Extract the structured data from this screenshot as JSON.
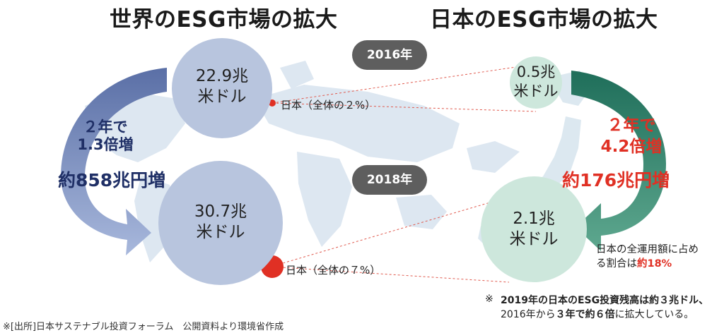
{
  "world": {
    "title": "世界のESG市場の拡大",
    "value_2016_num": "22.9兆",
    "value_2016_unit": "米ドル",
    "value_2018_num": "30.7兆",
    "value_2018_unit": "米ドル",
    "growth_line1": "２年で",
    "growth_line2": "1.3倍増",
    "growth_line3": "約858兆円増",
    "japan_share_2016": "日本（全体の２%）",
    "japan_share_2018": "日本（全体の７%）"
  },
  "japan": {
    "title": "日本のESG市場の拡大",
    "value_2016_num": "0.5兆",
    "value_2016_unit": "米ドル",
    "value_2018_num": "2.1兆",
    "value_2018_unit": "米ドル",
    "growth_line1": "２年で",
    "growth_line2": "4.2倍増",
    "growth_line3": "約176兆円増",
    "ratio_line1": "日本の全運用額に占め",
    "ratio_line2_prefix": "る割合は",
    "ratio_line2_value": "約18%"
  },
  "years": {
    "y2016": "2016年",
    "y2018": "2018年"
  },
  "footnote": {
    "mark": "※",
    "line1": "2019年の日本のESG投資残高は約３兆ドル、",
    "line2_a": "2016年から",
    "line2_b": "３年で約６倍",
    "line2_c": "に拡大している。"
  },
  "source": "※[出所]日本サステナブル投資フォーラム　公開資料より環境省作成",
  "colors": {
    "world_circle": "#b8c5de",
    "japan_circle": "#cde7dc",
    "navy": "#1f2f66",
    "red": "#e03024",
    "map": "#dde7f1",
    "world_arrow": "#7f93c2",
    "japan_arrow": "#2f7e6a"
  }
}
